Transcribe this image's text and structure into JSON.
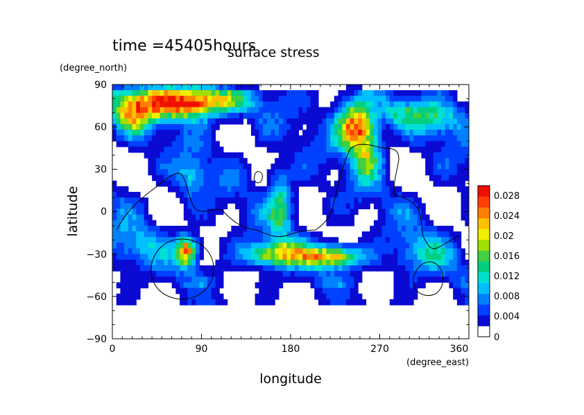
{
  "chart_data": {
    "type": "heatmap",
    "time_label": "time =45405hours",
    "title": "surface stress",
    "xlabel": "longitude",
    "ylabel": "latitude",
    "x_unit": "(degree_east)",
    "y_unit": "(degree_north)",
    "xlim": [
      0,
      360
    ],
    "ylim": [
      -90,
      90
    ],
    "x_ticks": [
      "0",
      "90",
      "180",
      "270",
      "360"
    ],
    "y_ticks": [
      "90",
      "60",
      "30",
      "0",
      "−30",
      "−60",
      "−90"
    ],
    "colorbar": {
      "min": 0,
      "max": 0.03,
      "tick_labels": [
        "0.028",
        "0.024",
        "0.02",
        "0.016",
        "0.012",
        "0.008",
        "0.004",
        "0"
      ],
      "colors": [
        "#ffffff",
        "#0a0ad2",
        "#0040ff",
        "#0080ff",
        "#00c0ff",
        "#00e0d0",
        "#00d080",
        "#40d040",
        "#a0e000",
        "#f0f000",
        "#ffc000",
        "#ff8000",
        "#ff4000",
        "#f01000"
      ]
    },
    "hotspots": [
      {
        "lon": 55,
        "lat": 77,
        "amp": 0.024,
        "slon": 38,
        "slat": 8
      },
      {
        "lon": 20,
        "lat": 65,
        "amp": 0.012,
        "slon": 12,
        "slat": 8
      },
      {
        "lon": 100,
        "lat": 78,
        "amp": 0.012,
        "slon": 25,
        "slat": 6
      },
      {
        "lon": 245,
        "lat": 60,
        "amp": 0.024,
        "slon": 12,
        "slat": 12
      },
      {
        "lon": 258,
        "lat": 40,
        "amp": 0.013,
        "slon": 10,
        "slat": 12
      },
      {
        "lon": 222,
        "lat": -32,
        "amp": 0.022,
        "slon": 20,
        "slat": 5
      },
      {
        "lon": 165,
        "lat": -30,
        "amp": 0.018,
        "slon": 22,
        "slat": 6
      },
      {
        "lon": 75,
        "lat": -28,
        "amp": 0.024,
        "slon": 7,
        "slat": 7
      },
      {
        "lon": 170,
        "lat": 5,
        "amp": 0.012,
        "slon": 8,
        "slat": 16
      },
      {
        "lon": 80,
        "lat": 25,
        "amp": 0.008,
        "slon": 10,
        "slat": 10
      },
      {
        "lon": 290,
        "lat": 70,
        "amp": 0.008,
        "slon": 25,
        "slat": 6
      },
      {
        "lon": 330,
        "lat": 65,
        "amp": 0.008,
        "slon": 20,
        "slat": 8
      },
      {
        "lon": 310,
        "lat": -30,
        "amp": 0.007,
        "slon": 20,
        "slat": 10
      },
      {
        "lon": 20,
        "lat": -25,
        "amp": 0.006,
        "slon": 20,
        "slat": 10
      }
    ]
  }
}
